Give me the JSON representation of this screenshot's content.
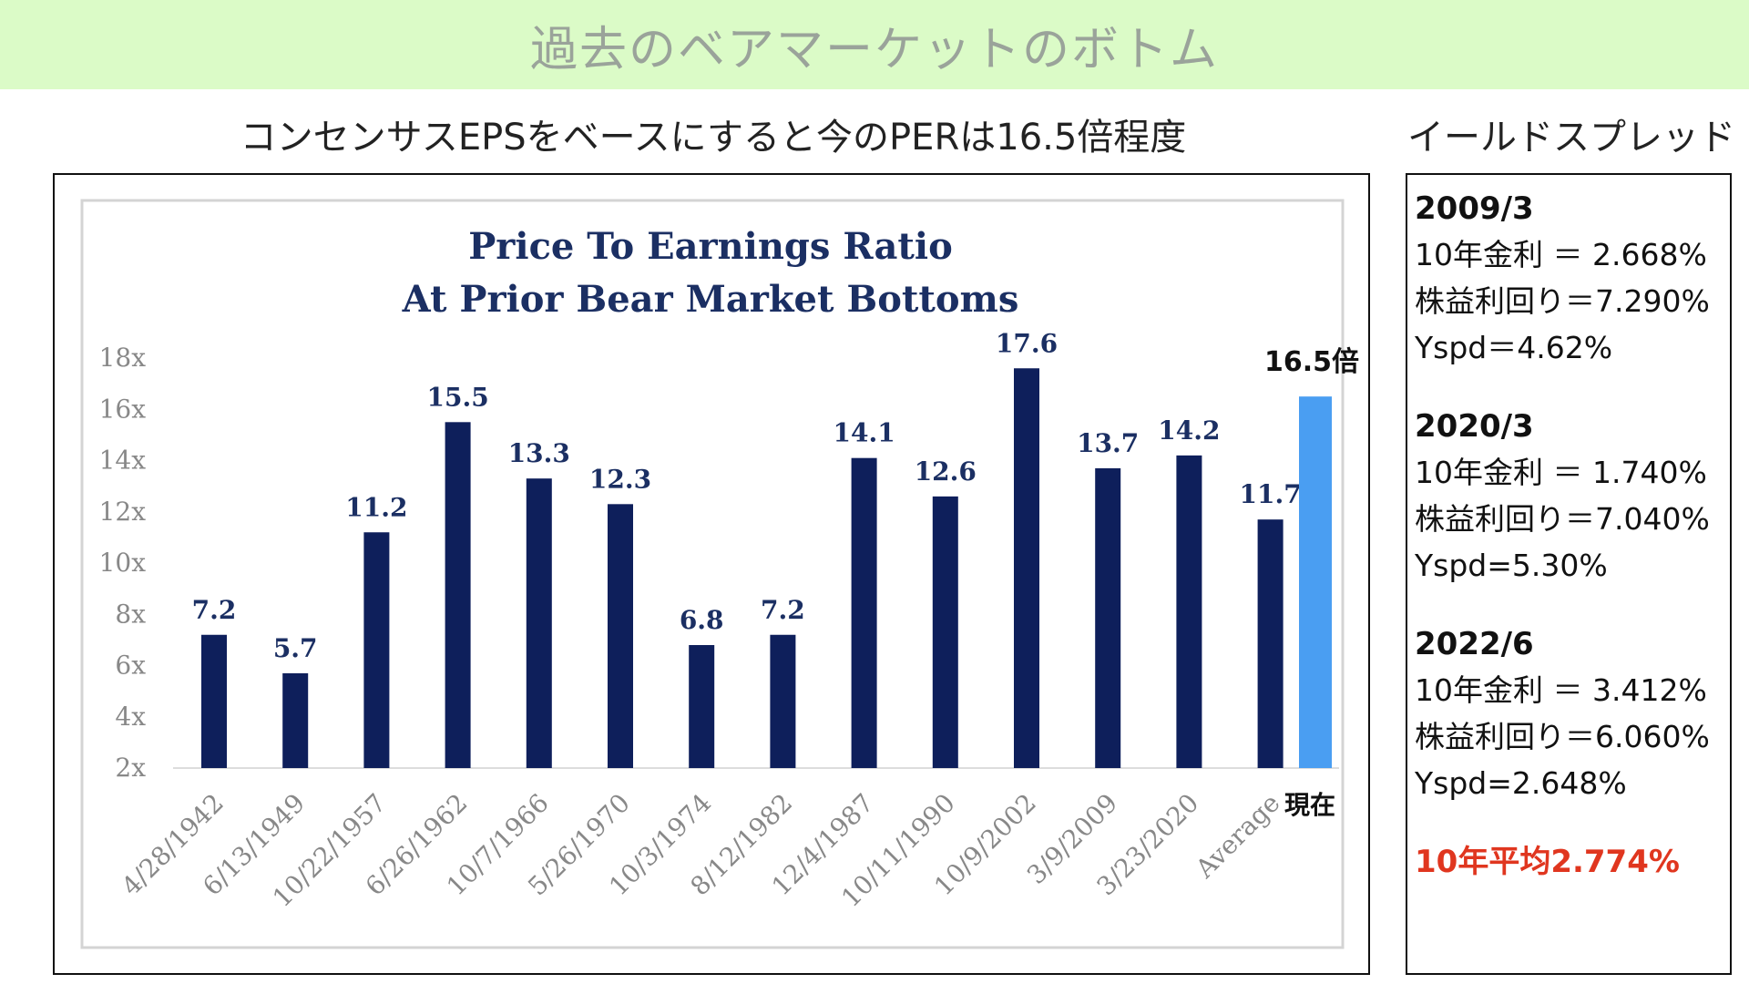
{
  "banner": {
    "title": "過去のベアマーケットのボトム"
  },
  "chart_heading": "コンセンサスEPSをベースにすると今のPERは16.5倍程度",
  "spread_heading": "イールドスプレッド",
  "chart_data": {
    "type": "bar",
    "title": "Price To Earnings Ratio",
    "subtitle": "At Prior Bear Market Bottoms",
    "categories": [
      "4/28/1942",
      "6/13/1949",
      "10/22/1957",
      "6/26/1962",
      "10/7/1966",
      "5/26/1970",
      "10/3/1974",
      "8/12/1982",
      "12/4/1987",
      "10/11/1990",
      "10/9/2002",
      "3/9/2009",
      "3/23/2020",
      "Average"
    ],
    "values": [
      7.2,
      5.7,
      11.2,
      15.5,
      13.3,
      12.3,
      6.8,
      7.2,
      14.1,
      12.6,
      17.6,
      13.7,
      14.2,
      11.7
    ],
    "labels": [
      "7.2",
      "5.7",
      "11.2",
      "15.5",
      "13.3",
      "12.3",
      "6.8",
      "7.2",
      "14.1",
      "12.6",
      "17.6",
      "13.7",
      "14.2",
      "11.7"
    ],
    "current": {
      "category": "現在",
      "value": 16.5,
      "label": "16.5倍"
    },
    "yticks": [
      "2x",
      "4x",
      "6x",
      "8x",
      "10x",
      "12x",
      "14x",
      "16x",
      "18x"
    ],
    "ytick_values": [
      2,
      4,
      6,
      8,
      10,
      12,
      14,
      16,
      18
    ],
    "ylim": [
      2,
      18
    ],
    "colors": {
      "bar": "#0e1f5b",
      "current_bar": "#4a9ef2",
      "title": "#1b2f63",
      "axis_text": "#888888"
    },
    "xlabel": "",
    "ylabel": ""
  },
  "yield_spread": {
    "periods": [
      {
        "title": "2009/3",
        "lines": [
          "10年金利 ＝ 2.668%",
          "株益利回り＝7.290%",
          "Yspd＝4.62%"
        ]
      },
      {
        "title": "2020/3",
        "lines": [
          "10年金利 ＝ 1.740%",
          "株益利回り＝7.040%",
          "Yspd=5.30%"
        ]
      },
      {
        "title": "2022/6",
        "lines": [
          "10年金利 ＝ 3.412%",
          "株益利回り＝6.060%",
          "Yspd=2.648%"
        ]
      }
    ],
    "average": "10年平均2.774%",
    "average_color": "#e0361f"
  }
}
